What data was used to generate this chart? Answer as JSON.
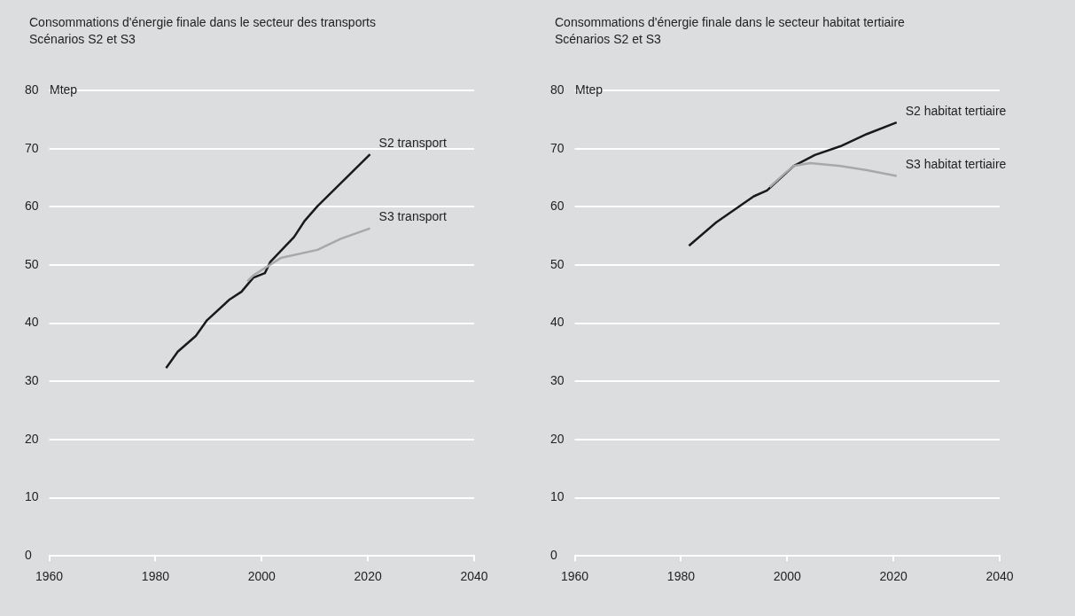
{
  "chart_data": [
    {
      "type": "line",
      "title": "Consommations d'énergie finale dans le secteur des transports",
      "subtitle": "Scénarios S2 et S3",
      "ylabel": "Mtep",
      "xlim": [
        1960,
        2040
      ],
      "xticks": [
        1960,
        1980,
        2000,
        2020,
        2040
      ],
      "ylim": [
        0,
        80
      ],
      "yticks": [
        0,
        10,
        20,
        30,
        40,
        50,
        60,
        70,
        80
      ],
      "grid": "y",
      "legend": false,
      "marker": "none",
      "line_style": "solid",
      "series": [
        {
          "name": "S3 transport",
          "color": "#a8a8a8",
          "x": [
            1997.3,
            1998.4,
            2003.6,
            2010.5,
            2014.9,
            2020.4
          ],
          "values": [
            47.2,
            48.2,
            51.2,
            52.6,
            54.5,
            56.3
          ]
        },
        {
          "name": "S2 transport",
          "color": "#1a1a1a",
          "x": [
            1982,
            1984.2,
            1987.6,
            1989.7,
            1994,
            1996.2,
            1998.4,
            2000.6,
            2001.6,
            2006.1,
            2008.1,
            2010.5,
            2020.4
          ],
          "values": [
            32.3,
            35.1,
            37.8,
            40.5,
            44.1,
            45.4,
            47.8,
            48.6,
            50.5,
            54.8,
            57.6,
            60.1,
            69
          ]
        }
      ]
    },
    {
      "type": "line",
      "title": "Consommations d'énergie finale dans le secteur habitat tertiaire",
      "subtitle": "Scénarios S2 et S3",
      "ylabel": "Mtep",
      "xlim": [
        1960,
        2040
      ],
      "xticks": [
        1960,
        1980,
        2000,
        2020,
        2040
      ],
      "ylim": [
        0,
        80
      ],
      "yticks": [
        0,
        10,
        20,
        30,
        40,
        50,
        60,
        70,
        80
      ],
      "grid": "y",
      "legend": false,
      "marker": "none",
      "line_style": "solid",
      "series": [
        {
          "name": "S3 habitat tertiaire",
          "color": "#a8a8a8",
          "x": [
            1996.7,
            1999.5,
            2001.2,
            2004.3,
            2010,
            2015,
            2020.6
          ],
          "values": [
            63.4,
            65.7,
            67,
            67.5,
            67,
            66.3,
            65.3
          ]
        },
        {
          "name": "S2 habitat tertiaire",
          "color": "#1a1a1a",
          "x": [
            1981.5,
            1986.6,
            1993.7,
            1996.2,
            2001.2,
            2005.2,
            2010,
            2015,
            2020.6
          ],
          "values": [
            53.3,
            57.3,
            61.8,
            62.8,
            67,
            68.9,
            70.4,
            72.5,
            74.5
          ]
        }
      ]
    }
  ]
}
